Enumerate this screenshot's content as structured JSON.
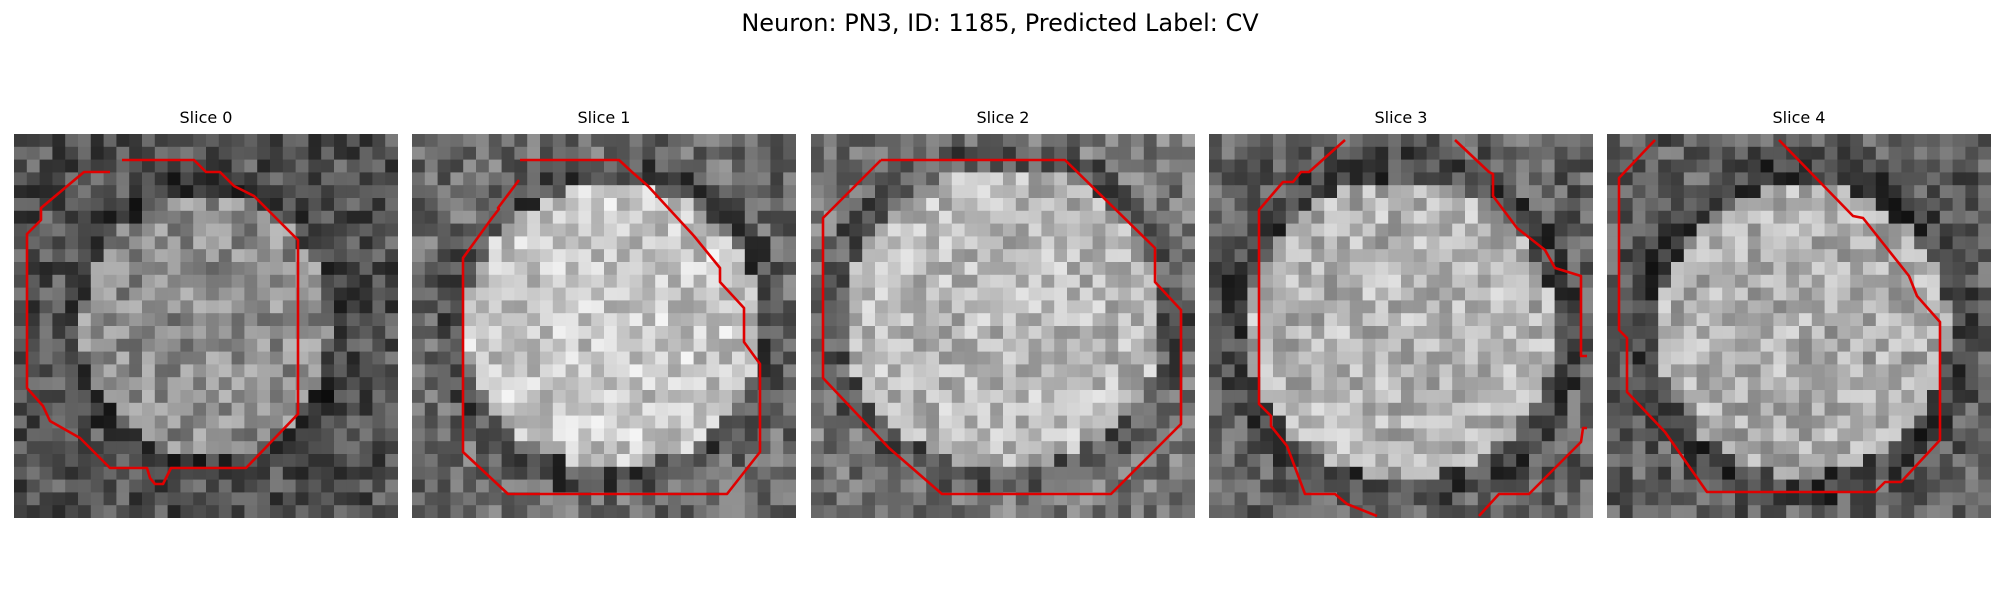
{
  "figure": {
    "title": "Neuron: PN3, ID: 1185, Predicted Label: CV",
    "contour_color": "#e00000"
  },
  "panels": [
    {
      "label": "Slice 0"
    },
    {
      "label": "Slice 1"
    },
    {
      "label": "Slice 2"
    },
    {
      "label": "Slice 3"
    },
    {
      "label": "Slice 4"
    }
  ]
}
